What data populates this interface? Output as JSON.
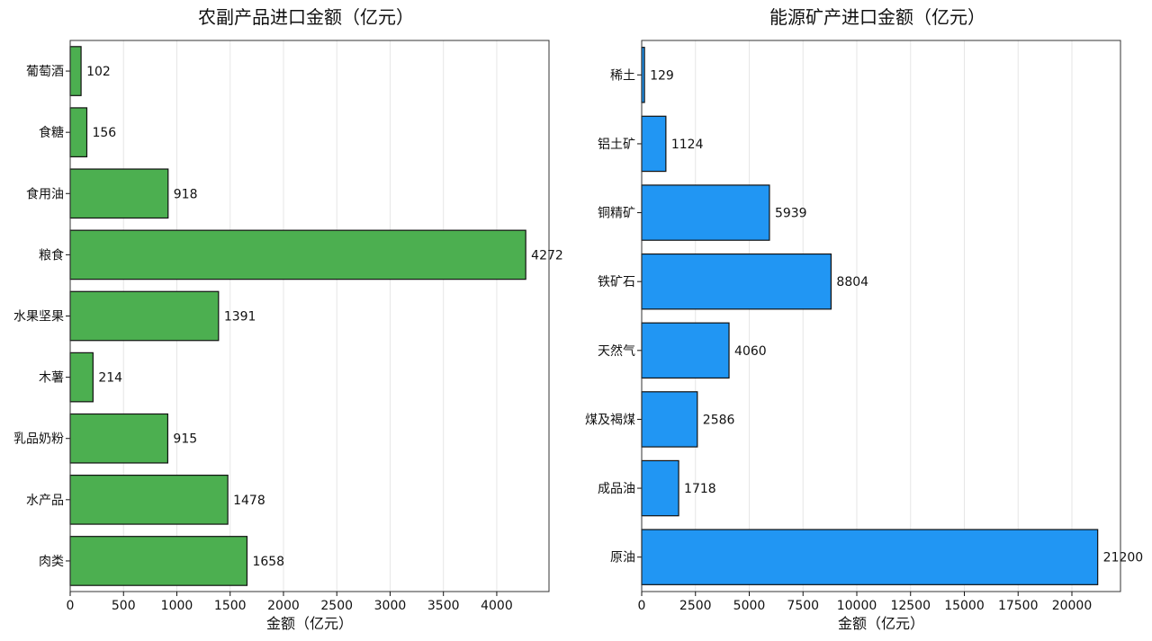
{
  "chart_data": [
    {
      "type": "bar",
      "orientation": "horizontal",
      "title": "农副产品进口金额（亿元）",
      "xlabel": "金额（亿元）",
      "ylabel": "",
      "xlim": [
        0,
        4490
      ],
      "xticks": [
        0,
        500,
        1000,
        1500,
        2000,
        2500,
        3000,
        3500,
        4000
      ],
      "grid": "vertical",
      "bar_color": "#4caf50",
      "categories": [
        "肉类",
        "水产品",
        "乳品奶粉",
        "木薯",
        "水果坚果",
        "粮食",
        "食用油",
        "食糖",
        "葡萄酒"
      ],
      "values": [
        1658,
        1478,
        915,
        214,
        1391,
        4272,
        918,
        156,
        102
      ]
    },
    {
      "type": "bar",
      "orientation": "horizontal",
      "title": "能源矿产进口金额（亿元）",
      "xlabel": "金额（亿元）",
      "ylabel": "",
      "xlim": [
        0,
        22260
      ],
      "xticks": [
        0,
        2500,
        5000,
        7500,
        10000,
        12500,
        15000,
        17500,
        20000
      ],
      "grid": "vertical",
      "bar_color": "#2196f3",
      "categories": [
        "原油",
        "成品油",
        "煤及褐煤",
        "天然气",
        "铁矿石",
        "铜精矿",
        "铝土矿",
        "稀土"
      ],
      "values": [
        21200,
        1718,
        2586,
        4060,
        8804,
        5939,
        1124,
        129
      ]
    }
  ]
}
